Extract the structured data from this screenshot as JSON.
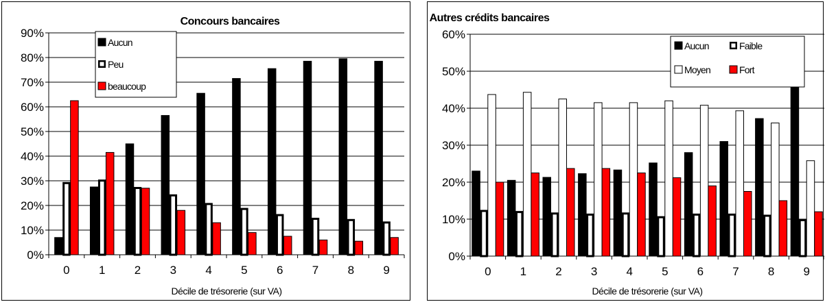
{
  "chart_data": [
    {
      "type": "bar",
      "title": "Concours bancaires",
      "xlabel": "Décile de trésorerie (sur VA)",
      "ylabel": "",
      "categories": [
        "0",
        "1",
        "2",
        "3",
        "4",
        "5",
        "6",
        "7",
        "8",
        "9"
      ],
      "ylim": [
        0,
        0.9
      ],
      "yticks": [
        "0%",
        "10%",
        "20%",
        "30%",
        "40%",
        "50%",
        "60%",
        "70%",
        "80%",
        "90%"
      ],
      "grid": true,
      "legend_position": "top-left",
      "series": [
        {
          "name": "Aucun",
          "color": "#000000",
          "style": "solid",
          "values": [
            0.07,
            0.275,
            0.45,
            0.565,
            0.655,
            0.715,
            0.755,
            0.785,
            0.795,
            0.785
          ]
        },
        {
          "name": "Peu",
          "color": "#ffffff",
          "style": "thick-outline",
          "values": [
            0.295,
            0.305,
            0.275,
            0.245,
            0.21,
            0.19,
            0.165,
            0.15,
            0.145,
            0.135
          ]
        },
        {
          "name": "beaucoup",
          "color": "#ff0000",
          "style": "solid",
          "values": [
            0.625,
            0.415,
            0.27,
            0.18,
            0.13,
            0.09,
            0.075,
            0.06,
            0.055,
            0.07
          ]
        }
      ]
    },
    {
      "type": "bar",
      "title": "Autres crédits bancaires",
      "xlabel": "Décile de trésorerie (sur VA)",
      "ylabel": "",
      "categories": [
        "0",
        "1",
        "2",
        "3",
        "4",
        "5",
        "6",
        "7",
        "8",
        "9"
      ],
      "ylim": [
        0,
        0.6
      ],
      "yticks": [
        "0%",
        "10%",
        "20%",
        "30%",
        "40%",
        "50%",
        "60%"
      ],
      "grid": true,
      "legend_position": "top-right",
      "series": [
        {
          "name": "Aucun",
          "color": "#000000",
          "style": "solid",
          "values": [
            0.23,
            0.205,
            0.213,
            0.223,
            0.233,
            0.252,
            0.28,
            0.31,
            0.372,
            0.515
          ]
        },
        {
          "name": "Faible",
          "color": "#ffffff",
          "style": "thick-outline",
          "values": [
            0.125,
            0.122,
            0.118,
            0.115,
            0.118,
            0.108,
            0.115,
            0.115,
            0.112,
            0.1
          ]
        },
        {
          "name": "Moyen",
          "color": "#ffffff",
          "style": "thin-outline",
          "values": [
            0.437,
            0.443,
            0.425,
            0.415,
            0.415,
            0.42,
            0.408,
            0.393,
            0.36,
            0.258
          ]
        },
        {
          "name": "Fort",
          "color": "#ff0000",
          "style": "solid",
          "values": [
            0.2,
            0.225,
            0.237,
            0.237,
            0.225,
            0.212,
            0.19,
            0.175,
            0.15,
            0.12
          ]
        }
      ]
    }
  ]
}
